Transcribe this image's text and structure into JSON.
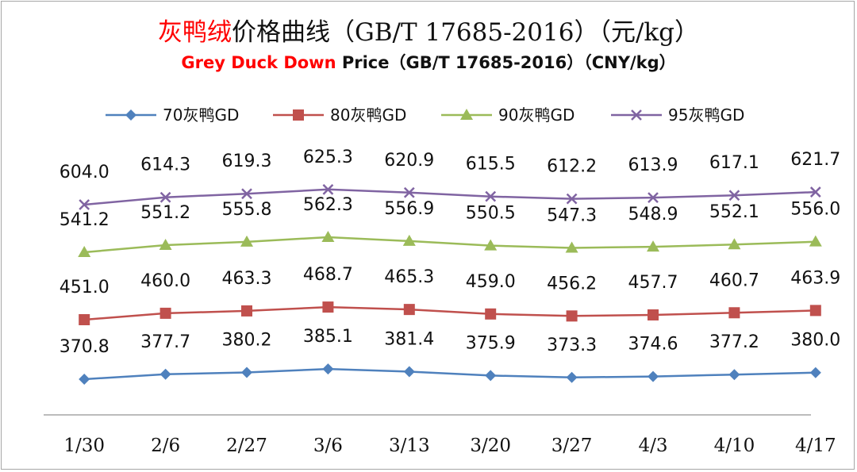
{
  "chart_data": {
    "type": "line",
    "title": {
      "cn_highlight": "灰鸭绒",
      "cn_rest": "价格曲线（GB/T 17685-2016）（元/kg）"
    },
    "subtitle": {
      "en_highlight": "Grey Duck Down",
      "en_rest": " Price（GB/T 17685-2016）（CNY/kg）"
    },
    "categories": [
      "1/30",
      "2/6",
      "2/27",
      "3/6",
      "3/13",
      "3/20",
      "3/27",
      "4/3",
      "4/10",
      "4/17"
    ],
    "series": [
      {
        "name": "70灰鸭GD",
        "color": "#4f81bd",
        "marker": "diamond",
        "values": [
          370.8,
          377.7,
          380.2,
          385.1,
          381.4,
          375.9,
          373.3,
          374.6,
          377.2,
          380.0
        ],
        "labels": [
          "370.8",
          "377.7",
          "380.2",
          "385.1",
          "381.4",
          "375.9",
          "373.3",
          "374.6",
          "377.2",
          "380.0"
        ]
      },
      {
        "name": "80灰鸭GD",
        "color": "#c0504d",
        "marker": "square",
        "values": [
          451.0,
          460.0,
          463.3,
          468.7,
          465.3,
          459.0,
          456.2,
          457.7,
          460.7,
          463.9
        ],
        "labels": [
          "451.0",
          "460.0",
          "463.3",
          "468.7",
          "465.3",
          "459.0",
          "456.2",
          "457.7",
          "460.7",
          "463.9"
        ]
      },
      {
        "name": "90灰鸭GD",
        "color": "#9bbb59",
        "marker": "triangle",
        "values": [
          541.2,
          551.2,
          555.8,
          562.3,
          556.9,
          550.5,
          547.3,
          548.9,
          552.1,
          556.0
        ],
        "labels": [
          "541.2",
          "551.2",
          "555.8",
          "562.3",
          "556.9",
          "550.5",
          "547.3",
          "548.9",
          "552.1",
          "556.0"
        ]
      },
      {
        "name": "95灰鸭GD",
        "color": "#8064a2",
        "marker": "x",
        "values": [
          604.0,
          614.3,
          619.3,
          625.3,
          620.9,
          615.5,
          612.2,
          613.9,
          617.1,
          621.7
        ],
        "labels": [
          "604.0",
          "614.3",
          "619.3",
          "625.3",
          "620.9",
          "615.5",
          "612.2",
          "613.9",
          "617.1",
          "621.7"
        ]
      }
    ],
    "legend_position": "top",
    "grid": false,
    "axis_color": "#a6a6a6",
    "highlight_color": "#ff0000"
  }
}
